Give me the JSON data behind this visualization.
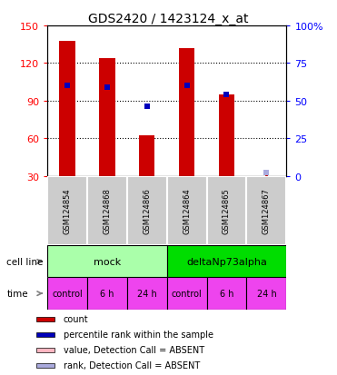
{
  "title": "GDS2420 / 1423124_x_at",
  "samples": [
    "GSM124854",
    "GSM124868",
    "GSM124866",
    "GSM124864",
    "GSM124865",
    "GSM124867"
  ],
  "counts": [
    138,
    124,
    62,
    132,
    95,
    30
  ],
  "percentile_ranks": [
    60,
    59,
    46,
    60,
    54,
    2
  ],
  "absent_flags": [
    false,
    false,
    false,
    false,
    false,
    true
  ],
  "cell_line_groups": [
    {
      "label": "mock",
      "start": 0,
      "end": 3,
      "color": "#AAFFAA"
    },
    {
      "label": "deltaNp73alpha",
      "start": 3,
      "end": 6,
      "color": "#00DD00"
    }
  ],
  "time_labels": [
    "control",
    "6 h",
    "24 h",
    "control",
    "6 h",
    "24 h"
  ],
  "time_color": "#EE44EE",
  "sample_bg_color": "#CCCCCC",
  "bar_color": "#CC0000",
  "rank_color_present": "#0000BB",
  "rank_color_absent": "#AAAADD",
  "absent_bar_color": "#FFB6C1",
  "absent_dot_color": "#CC0000",
  "ylim_left": [
    30,
    150
  ],
  "ylim_right": [
    0,
    100
  ],
  "yticks_left": [
    30,
    60,
    90,
    120,
    150
  ],
  "yticks_right": [
    0,
    25,
    50,
    75,
    100
  ],
  "yticklabels_right": [
    "0",
    "25",
    "50",
    "75",
    "100%"
  ],
  "legend_items": [
    {
      "color": "#CC0000",
      "label": "count"
    },
    {
      "color": "#0000BB",
      "label": "percentile rank within the sample"
    },
    {
      "color": "#FFB6C1",
      "label": "value, Detection Call = ABSENT"
    },
    {
      "color": "#AAAADD",
      "label": "rank, Detection Call = ABSENT"
    }
  ]
}
